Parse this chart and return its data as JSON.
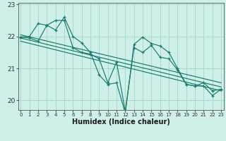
{
  "title": "",
  "xlabel": "Humidex (Indice chaleur)",
  "bg_color": "#cef0e8",
  "grid_color": "#a8d8cc",
  "line_color": "#1a7a6e",
  "x_values": [
    0,
    1,
    2,
    3,
    4,
    5,
    6,
    7,
    8,
    9,
    10,
    11,
    12,
    13,
    14,
    15,
    16,
    17,
    18,
    19,
    20,
    21,
    22,
    23
  ],
  "y_series1": [
    21.98,
    22.0,
    22.4,
    22.35,
    22.2,
    22.6,
    22.0,
    21.8,
    21.5,
    20.8,
    20.5,
    20.55,
    19.6,
    21.75,
    21.98,
    21.78,
    21.7,
    21.5,
    21.0,
    20.5,
    20.45,
    20.45,
    20.15,
    20.35
  ],
  "y_series2": [
    21.98,
    21.95,
    21.85,
    22.35,
    22.5,
    22.5,
    21.65,
    21.5,
    21.45,
    21.3,
    20.55,
    21.2,
    19.65,
    21.65,
    21.5,
    21.72,
    21.35,
    21.3,
    20.95,
    20.5,
    20.45,
    20.55,
    20.3,
    20.35
  ],
  "trend1_y": [
    22.05,
    20.55
  ],
  "trend2_y": [
    21.95,
    20.42
  ],
  "trend3_y": [
    21.85,
    20.3
  ],
  "ylim": [
    19.7,
    23.05
  ],
  "yticks": [
    20,
    21,
    22,
    23
  ],
  "xlim": [
    -0.3,
    23.3
  ]
}
